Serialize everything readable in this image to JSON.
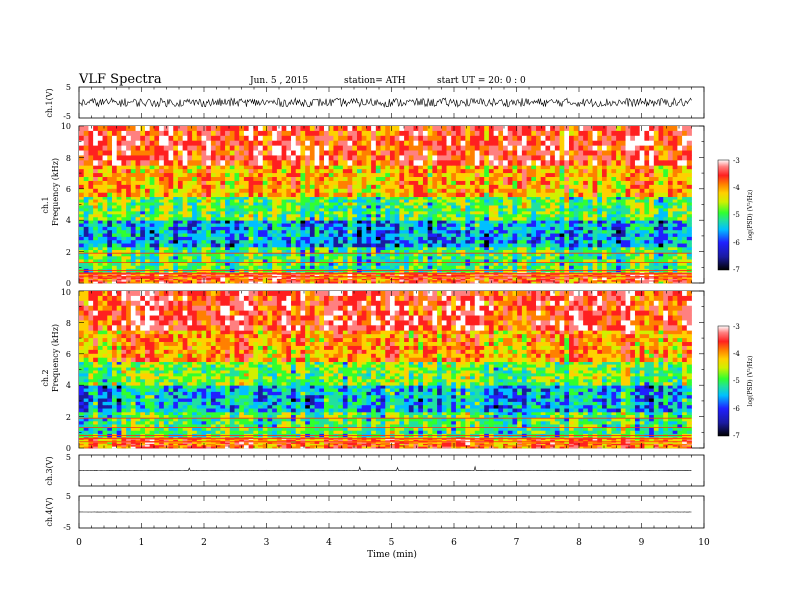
{
  "header": {
    "title": "VLF  Spectra",
    "date": "Jun. 5  , 2015",
    "station": "station= ATH",
    "start": "start  UT =   20: 0  : 0"
  },
  "chart_data": [
    {
      "type": "line",
      "panel": "ch1-waveform",
      "ylabel": "ch.1(V)",
      "ylim": [
        -5,
        5
      ],
      "yticks": [
        "5",
        "-5"
      ],
      "note_values": "noisy waveform roughly between -1.5 V and +1.5 V for 0 to 9.8 min"
    },
    {
      "type": "heatmap",
      "panel": "ch1-spectrogram",
      "ylabel_channel": "ch.1",
      "ylabel": "Frequency  (kHz)",
      "ylim": [
        0,
        10
      ],
      "yticks": [
        "0",
        "2",
        "4",
        "6",
        "8",
        "10"
      ],
      "data_extent_min": 9.8,
      "colorbar": {
        "label": "log(PSD) (V²/Hz)",
        "range": [
          -7,
          -3
        ],
        "ticks": [
          "-3",
          "-4",
          "-5",
          "-6",
          "-7"
        ]
      },
      "frequency_bands_kHz": [
        {
          "from": 0,
          "to": 0.7,
          "logPSD": -4.0
        },
        {
          "from": 0.7,
          "to": 2.3,
          "logPSD": -5.3
        },
        {
          "from": 2.3,
          "to": 4.0,
          "logPSD": -5.9
        },
        {
          "from": 4.0,
          "to": 5.5,
          "logPSD": -5.2
        },
        {
          "from": 5.5,
          "to": 7.5,
          "logPSD": -4.4
        },
        {
          "from": 7.5,
          "to": 10,
          "logPSD": -3.8
        }
      ]
    },
    {
      "type": "heatmap",
      "panel": "ch2-spectrogram",
      "ylabel_channel": "ch.2",
      "ylabel": "Frequency  (kHz)",
      "ylim": [
        0,
        10
      ],
      "yticks": [
        "0",
        "2",
        "4",
        "6",
        "8",
        "10"
      ],
      "data_extent_min": 9.8,
      "colorbar": {
        "label": "log(PSD) (V²/Hz)",
        "range": [
          -7,
          -3
        ],
        "ticks": [
          "-3",
          "-4",
          "-5",
          "-6",
          "-7"
        ]
      },
      "frequency_bands_kHz": [
        {
          "from": 0,
          "to": 0.7,
          "logPSD": -4.1
        },
        {
          "from": 0.7,
          "to": 2.3,
          "logPSD": -5.3
        },
        {
          "from": 2.3,
          "to": 4.0,
          "logPSD": -5.8
        },
        {
          "from": 4.0,
          "to": 5.5,
          "logPSD": -5.1
        },
        {
          "from": 5.5,
          "to": 7.5,
          "logPSD": -4.3
        },
        {
          "from": 7.5,
          "to": 10,
          "logPSD": -3.8
        }
      ]
    },
    {
      "type": "line",
      "panel": "ch3-waveform",
      "ylabel": "ch.3(V)",
      "ylim": [
        -5,
        5
      ],
      "yticks": [
        "5"
      ],
      "note_values": "nearly flat at about 0 V with small spikes"
    },
    {
      "type": "line",
      "panel": "ch4-waveform",
      "ylabel": "ch.4(V)",
      "ylim": [
        -5,
        5
      ],
      "yticks": [
        "5",
        "-5"
      ],
      "note_values": "flat at about 0 V"
    }
  ],
  "xaxis": {
    "label": "Time  (min)",
    "xlim": [
      0,
      10
    ],
    "ticks": [
      "0",
      "1",
      "2",
      "3",
      "4",
      "5",
      "6",
      "7",
      "8",
      "9",
      "10"
    ]
  },
  "colors": {
    "colormap": [
      "#000000",
      "#1a1aa0",
      "#2020ff",
      "#00c0ff",
      "#20e0a0",
      "#30ff30",
      "#d0f000",
      "#ffd000",
      "#ff8000",
      "#ff2020",
      "#ff8080",
      "#ffffff"
    ]
  }
}
